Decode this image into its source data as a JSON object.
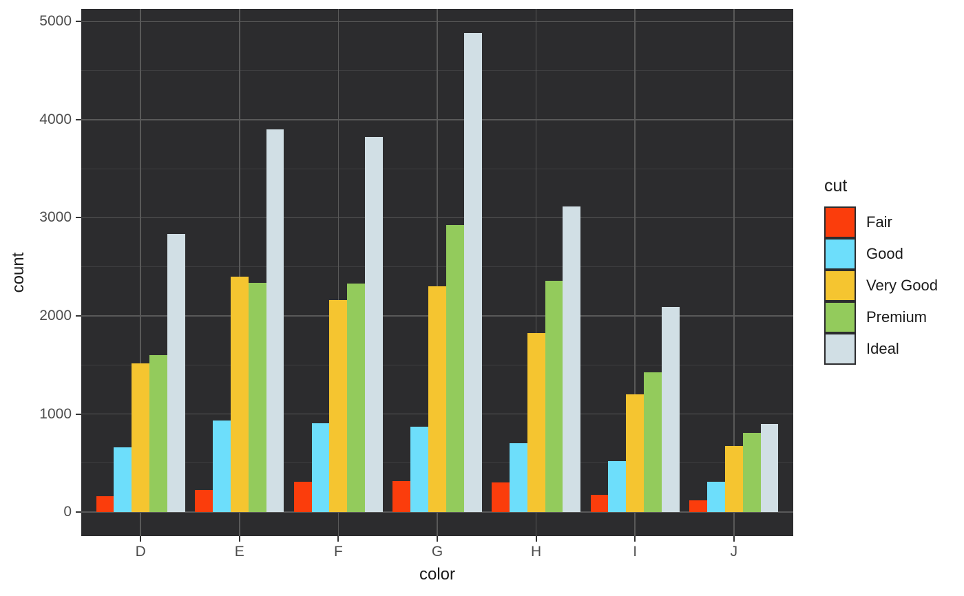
{
  "chart_data": {
    "type": "bar",
    "grouping": "dodged",
    "title": "",
    "xlabel": "color",
    "ylabel": "count",
    "categories": [
      "D",
      "E",
      "F",
      "G",
      "H",
      "I",
      "J"
    ],
    "series": [
      {
        "name": "Fair",
        "color": "#FB3D0C",
        "values": [
          163,
          224,
          312,
          314,
          303,
          175,
          119
        ]
      },
      {
        "name": "Good",
        "color": "#6DDEFB",
        "values": [
          662,
          933,
          909,
          871,
          702,
          522,
          307
        ]
      },
      {
        "name": "Very Good",
        "color": "#F5C530",
        "values": [
          1513,
          2400,
          2164,
          2299,
          1824,
          1204,
          678
        ]
      },
      {
        "name": "Premium",
        "color": "#93CB5C",
        "values": [
          1603,
          2337,
          2331,
          2924,
          2360,
          1428,
          808
        ]
      },
      {
        "name": "Ideal",
        "color": "#D1DFE5",
        "values": [
          2834,
          3903,
          3826,
          4884,
          3115,
          2093,
          896
        ]
      }
    ],
    "y_ticks": [
      0,
      1000,
      2000,
      3000,
      4000,
      5000
    ],
    "y_minor_ticks": [
      500,
      1500,
      2500,
      3500,
      4500
    ],
    "ylim": [
      -244,
      5128
    ],
    "legend": {
      "title": "cut",
      "position": "right-center"
    },
    "grid": {
      "major_y": true,
      "minor_y": true,
      "major_x": true,
      "minor_x": false
    },
    "theme": {
      "panel_bg": "#2C2C2E",
      "outer_bg": "#FFFFFF",
      "grid_major": "#595959",
      "grid_minor": "#3E3E40",
      "tick_label_color": "#4D4D4D",
      "axis_title_color": "#1A1A1A",
      "tick_mark_color": "#333333",
      "legend_text_color": "#1A1A1A",
      "legend_key_border": "#2C2C2E"
    }
  }
}
